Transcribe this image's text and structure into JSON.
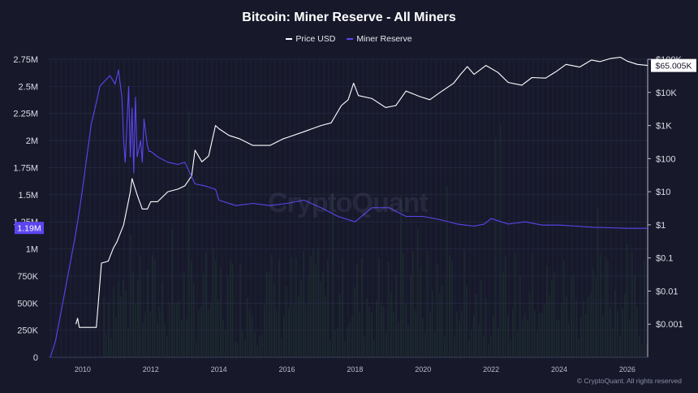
{
  "chart_data": {
    "type": "line",
    "title": "Bitcoin: Miner Reserve - All Miners",
    "legend_position": "top-center",
    "x_ticks": [
      "2010",
      "2012",
      "2014",
      "2016",
      "2018",
      "2020",
      "2022",
      "2024",
      "2026"
    ],
    "x_range": [
      2009.0,
      2026.6
    ],
    "left_axis": {
      "ticks": [
        "0",
        "250K",
        "500K",
        "750K",
        "1M",
        "1.25M",
        "1.5M",
        "1.75M",
        "2M",
        "2.25M",
        "2.5M",
        "2.75M"
      ],
      "range": [
        0,
        2750000
      ]
    },
    "right_axis": {
      "scale": "log",
      "ticks": [
        "$0.001",
        "$0.01",
        "$0.1",
        "$1",
        "$10",
        "$100",
        "$1K",
        "$10K",
        "$100K"
      ],
      "range": [
        0.0001,
        100000
      ]
    },
    "current_labels": {
      "miner_reserve": "1.19M",
      "price": "$65.005K"
    },
    "grid": true,
    "series": [
      {
        "name": "Price USD",
        "axis": "right",
        "color": "#ffffff",
        "x": [
          2009.8,
          2009.85,
          2009.9,
          2010.0,
          2010.4,
          2010.55,
          2010.75,
          2010.9,
          2011.0,
          2011.2,
          2011.4,
          2011.45,
          2011.6,
          2011.75,
          2011.9,
          2012.0,
          2012.2,
          2012.5,
          2012.8,
          2013.0,
          2013.2,
          2013.3,
          2013.5,
          2013.7,
          2013.9,
          2014.0,
          2014.3,
          2014.6,
          2015.0,
          2015.5,
          2015.9,
          2016.0,
          2016.5,
          2017.0,
          2017.3,
          2017.6,
          2017.8,
          2017.96,
          2018.1,
          2018.5,
          2018.9,
          2019.2,
          2019.5,
          2019.9,
          2020.2,
          2020.5,
          2020.9,
          2021.1,
          2021.3,
          2021.5,
          2021.85,
          2022.2,
          2022.5,
          2022.9,
          2023.2,
          2023.6,
          2023.9,
          2024.2,
          2024.6,
          2024.95,
          2025.2,
          2025.5,
          2025.8,
          2026.0,
          2026.3,
          2026.6
        ],
        "values": [
          0.001,
          0.0015,
          0.0008,
          0.0008,
          0.0008,
          0.07,
          0.08,
          0.2,
          0.3,
          1,
          10,
          25,
          8,
          3,
          3,
          5,
          5,
          10,
          12,
          15,
          30,
          180,
          80,
          120,
          1000,
          800,
          500,
          400,
          250,
          250,
          400,
          430,
          650,
          1000,
          1200,
          4000,
          6000,
          19000,
          8000,
          6500,
          3500,
          4000,
          11000,
          7500,
          6000,
          10000,
          19000,
          35000,
          60000,
          35000,
          65000,
          40000,
          20000,
          16500,
          28000,
          27000,
          42000,
          70000,
          58000,
          95000,
          85000,
          105000,
          115000,
          88000,
          70000,
          65005
        ]
      },
      {
        "name": "Miner Reserve",
        "axis": "left",
        "color": "#5b45f0",
        "x": [
          2009.05,
          2009.2,
          2009.35,
          2009.5,
          2009.65,
          2009.8,
          2009.95,
          2010.1,
          2010.25,
          2010.4,
          2010.5,
          2010.65,
          2010.8,
          2010.95,
          2011.05,
          2011.15,
          2011.2,
          2011.25,
          2011.35,
          2011.4,
          2011.45,
          2011.5,
          2011.55,
          2011.6,
          2011.7,
          2011.75,
          2011.8,
          2011.9,
          2011.95,
          2012.0,
          2012.2,
          2012.5,
          2012.8,
          2013.0,
          2013.3,
          2013.6,
          2013.9,
          2014.0,
          2014.5,
          2015.0,
          2015.5,
          2016.0,
          2016.5,
          2017.0,
          2017.5,
          2018.0,
          2018.5,
          2019.0,
          2019.5,
          2020.0,
          2020.5,
          2021.0,
          2021.5,
          2021.8,
          2022.0,
          2022.5,
          2023.0,
          2023.5,
          2024.0,
          2024.5,
          2025.0,
          2025.5,
          2026.0,
          2026.6
        ],
        "values": [
          0,
          150000,
          400000,
          650000,
          900000,
          1150000,
          1450000,
          1800000,
          2150000,
          2350000,
          2500000,
          2550000,
          2600000,
          2520000,
          2650000,
          2400000,
          2000000,
          1800000,
          2500000,
          1850000,
          2300000,
          1700000,
          2400000,
          1850000,
          2000000,
          1800000,
          2200000,
          1950000,
          1900000,
          1900000,
          1850000,
          1800000,
          1780000,
          1800000,
          1600000,
          1580000,
          1550000,
          1450000,
          1400000,
          1420000,
          1400000,
          1420000,
          1450000,
          1380000,
          1300000,
          1250000,
          1380000,
          1380000,
          1300000,
          1300000,
          1270000,
          1230000,
          1210000,
          1230000,
          1280000,
          1230000,
          1250000,
          1220000,
          1220000,
          1210000,
          1200000,
          1195000,
          1190000,
          1190000
        ]
      }
    ]
  },
  "footer": {
    "copyright": "© CryptoQuant. All rights reserved"
  },
  "watermark": "CryptoQuant",
  "colors": {
    "background": "#17192b",
    "grid": "#2a2d46",
    "price_line": "#ffffff",
    "reserve_line": "#5b45f0",
    "volume_bars": "#1f3b2d"
  }
}
